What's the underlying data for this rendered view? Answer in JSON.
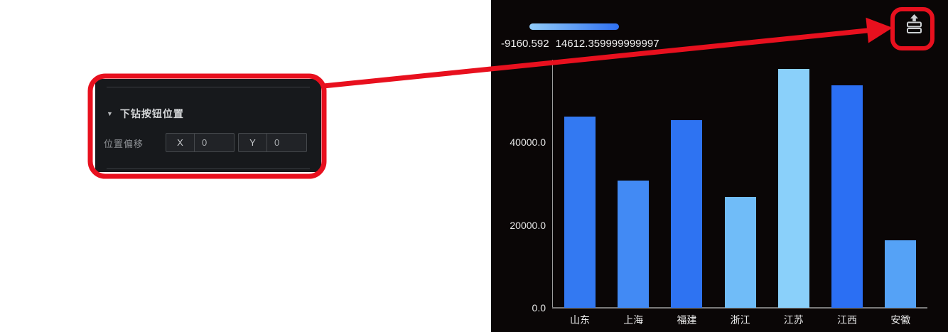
{
  "panel": {
    "collapse_icon": "▼",
    "section_title": "下钻按钮位置",
    "offset_label": "位置偏移",
    "fields": [
      {
        "prefix": "X",
        "value": "0"
      },
      {
        "prefix": "Y",
        "value": "0"
      }
    ]
  },
  "chart": {
    "visual_map": {
      "min_label": "-9160.592",
      "max_label": "14612.359999999997",
      "gradient_start": "#92ccf9",
      "gradient_end": "#2f70f1"
    }
  },
  "chart_data": {
    "type": "bar",
    "title": "",
    "xlabel": "",
    "ylabel": "",
    "categories": [
      "山东",
      "上海",
      "福建",
      "浙江",
      "江苏",
      "江西",
      "安徽"
    ],
    "values": [
      46150,
      30770,
      45300,
      26840,
      57600,
      53680,
      16240
    ],
    "bar_colors": [
      "#3379f2",
      "#428af4",
      "#2e73f2",
      "#70bcf8",
      "#8ad0fa",
      "#2b6ff3",
      "#55a2f6"
    ],
    "yticks": [
      0,
      20000,
      40000
    ],
    "ytick_labels": [
      "0.0",
      "20000.0",
      "40000.0"
    ],
    "ylim": [
      0,
      60000
    ],
    "grid": false,
    "legend_position": "top-left",
    "visual_map_range": [
      -9160.592,
      14612.359999999997
    ]
  },
  "annotations": {
    "highlight_color": "#e8101e"
  }
}
